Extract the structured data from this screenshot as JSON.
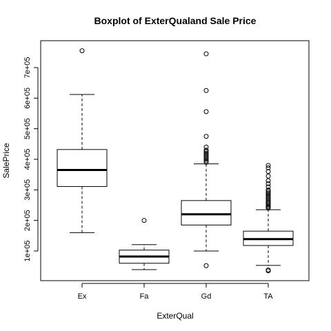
{
  "chart_data": {
    "type": "boxplot",
    "title": "Boxplot of ExterQualand Sale Price",
    "xlabel": "ExterQual",
    "ylabel": "SalePrice",
    "categories": [
      "Ex",
      "Fa",
      "Gd",
      "TA"
    ],
    "y_tick_labels": [
      "1e+05",
      "2e+05",
      "3e+05",
      "4e+05",
      "5e+05",
      "6e+05",
      "7e+05"
    ],
    "y_ticks": [
      100000,
      200000,
      300000,
      400000,
      500000,
      600000,
      700000
    ],
    "ylim": [
      0,
      790000
    ],
    "boxes": [
      {
        "category": "Ex",
        "whisker_low": 160000,
        "q1": 311000,
        "median": 365000,
        "q3": 432000,
        "whisker_high": 612000,
        "outliers": [
          755000
        ]
      },
      {
        "category": "Fa",
        "whisker_low": 39000,
        "q1": 60000,
        "median": 82000,
        "q3": 103000,
        "whisker_high": 121000,
        "outliers": [
          200000
        ]
      },
      {
        "category": "Gd",
        "whisker_low": 100000,
        "q1": 185000,
        "median": 220000,
        "q3": 265000,
        "whisker_high": 385000,
        "outliers": [
          52000,
          390000,
          395000,
          400000,
          405000,
          410000,
          415000,
          420000,
          425000,
          430000,
          440000,
          475000,
          556000,
          625000,
          745000
        ]
      },
      {
        "category": "TA",
        "whisker_low": 53000,
        "q1": 118000,
        "median": 139000,
        "q3": 165000,
        "whisker_high": 235000,
        "outliers": [
          35000,
          38000,
          240000,
          244000,
          248000,
          252000,
          256000,
          260000,
          265000,
          270000,
          275000,
          280000,
          285000,
          290000,
          295000,
          300000,
          310000,
          320000,
          330000,
          345000,
          360000,
          372000,
          380000
        ]
      }
    ]
  }
}
